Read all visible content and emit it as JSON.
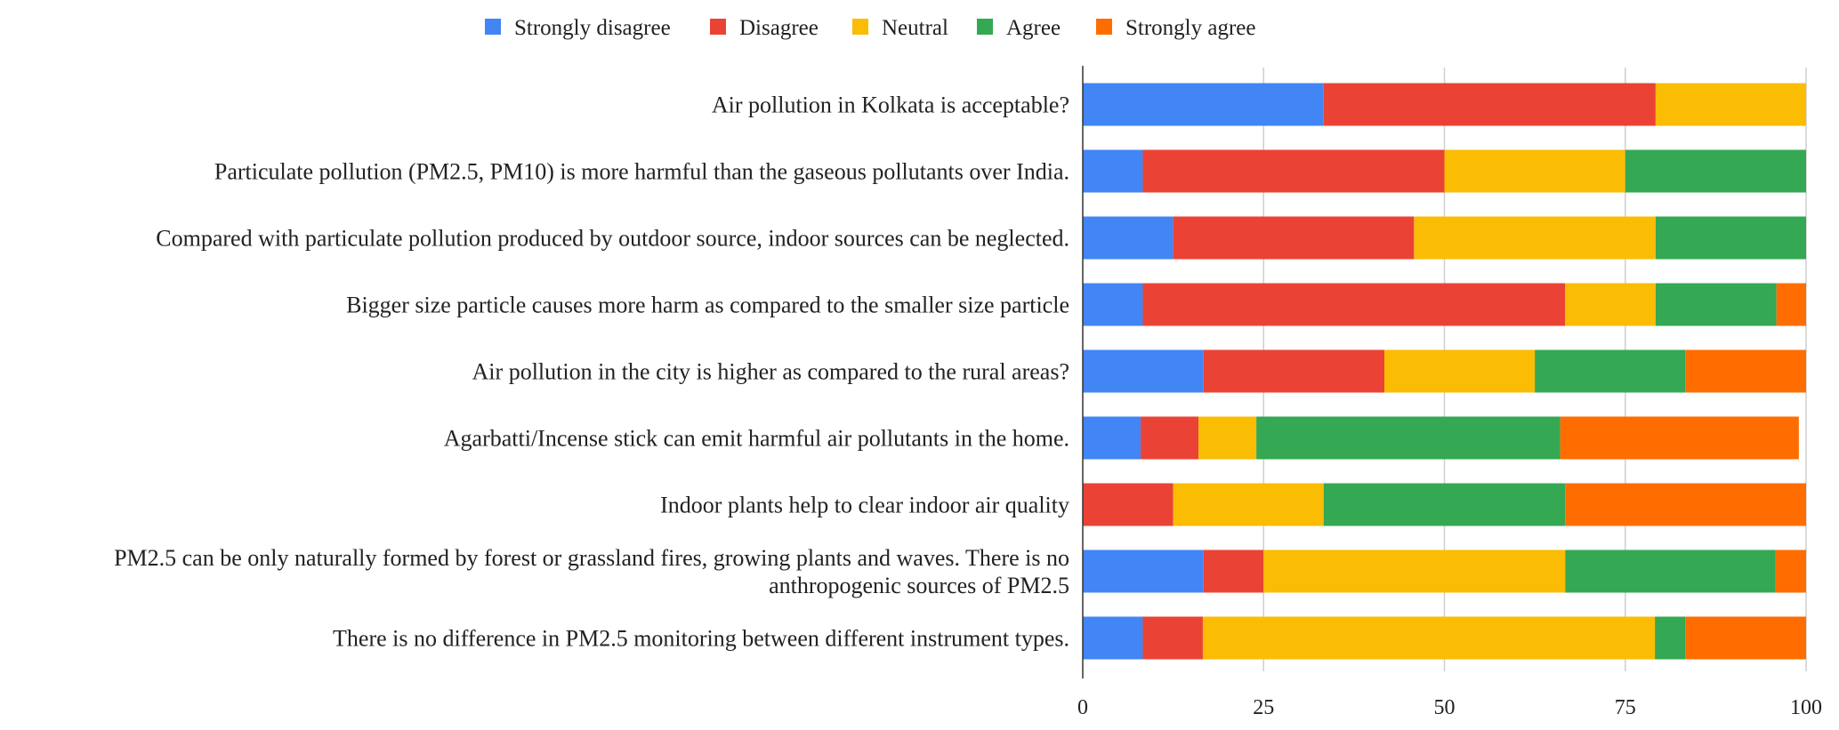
{
  "chart_data": {
    "type": "bar",
    "orientation": "horizontal",
    "stacked": true,
    "legend_position": "top",
    "grid": true,
    "xlim": [
      0,
      100
    ],
    "xticks": [
      "0",
      "25",
      "50",
      "75",
      "100"
    ],
    "legend": [
      {
        "label": "Strongly disagree",
        "color": "#4285f4"
      },
      {
        "label": "Disagree",
        "color": "#ea4335"
      },
      {
        "label": "Neutral",
        "color": "#fbbc04"
      },
      {
        "label": "Agree",
        "color": "#34a853"
      },
      {
        "label": "Strongly agree",
        "color": "#ff6d01"
      }
    ],
    "categories": [
      [
        "Air pollution in Kolkata is acceptable?"
      ],
      [
        "Particulate pollution (PM2.5, PM10) is more harmful than the gaseous pollutants over India."
      ],
      [
        "Compared with particulate pollution produced by outdoor source, indoor sources can be neglected."
      ],
      [
        "Bigger size particle causes more harm as compared to the smaller size particle"
      ],
      [
        "Air pollution in the city is higher as compared to the rural areas?"
      ],
      [
        "Agarbatti/Incense stick can emit harmful air pollutants in the home."
      ],
      [
        "Indoor plants help to clear indoor air quality"
      ],
      [
        "PM2.5 can be only naturally formed by forest or grassland fires, growing plants and waves. There is no",
        "anthropogenic sources of PM2.5"
      ],
      [
        "There is no difference in PM2.5 monitoring between different instrument types."
      ]
    ],
    "series": [
      {
        "name": "Strongly disagree",
        "values": [
          33.3,
          8.3,
          12.5,
          8.3,
          16.7,
          8.0,
          0,
          16.7,
          8.3
        ]
      },
      {
        "name": "Disagree",
        "values": [
          45.9,
          41.7,
          33.3,
          58.4,
          25.0,
          8.0,
          12.5,
          8.3,
          8.3
        ]
      },
      {
        "name": "Neutral",
        "values": [
          20.8,
          25.0,
          33.4,
          12.5,
          20.8,
          8.0,
          20.8,
          41.7,
          62.5
        ]
      },
      {
        "name": "Agree",
        "values": [
          0,
          25.0,
          20.8,
          16.7,
          20.8,
          42.0,
          33.4,
          29.1,
          4.2
        ]
      },
      {
        "name": "Strongly agree",
        "values": [
          0,
          0,
          0,
          4.1,
          16.7,
          33.0,
          33.3,
          4.2,
          16.7
        ]
      }
    ]
  }
}
